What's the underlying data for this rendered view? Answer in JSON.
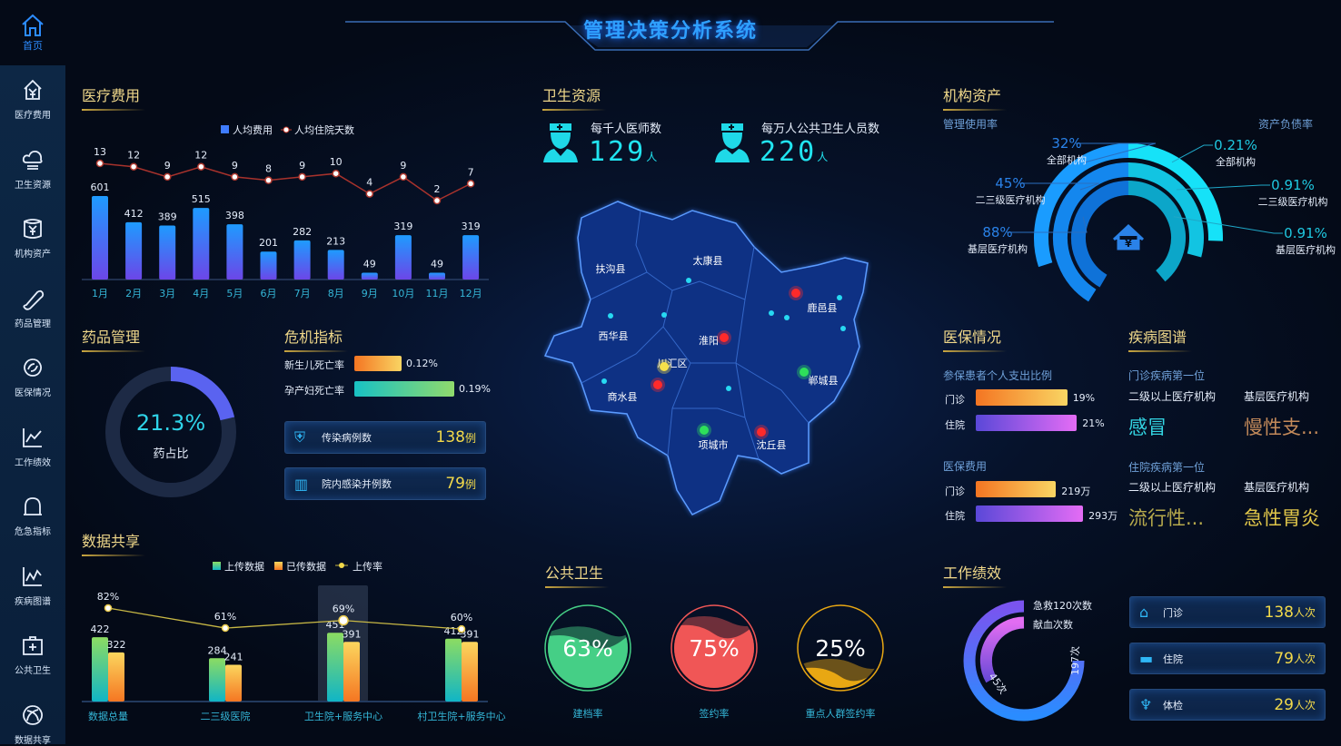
{
  "header": {
    "title": "管理决策分析系统"
  },
  "sidebar": {
    "home": "首页",
    "items": [
      {
        "label": "医疗费用",
        "icon": "house-yen-icon"
      },
      {
        "label": "卫生资源",
        "icon": "cloud-icon"
      },
      {
        "label": "机构资产",
        "icon": "coin-stack-icon"
      },
      {
        "label": "药品管理",
        "icon": "pill-icon"
      },
      {
        "label": "医保情况",
        "icon": "si-logo-icon"
      },
      {
        "label": "工作绩效",
        "icon": "line-chart-icon"
      },
      {
        "label": "危急指标",
        "icon": "bell-icon"
      },
      {
        "label": "疾病图谱",
        "icon": "trend-chart-icon"
      },
      {
        "label": "公共卫生",
        "icon": "medical-plus-icon"
      },
      {
        "label": "数据共享",
        "icon": "share-icon"
      }
    ]
  },
  "medical_cost": {
    "title": "医疗费用"
  },
  "resources": {
    "title": "卫生资源",
    "doctors": {
      "label": "每千人医师数",
      "value": "129",
      "unit": "人"
    },
    "staff": {
      "label": "每万人公共卫生人员数",
      "value": "220",
      "unit": "人"
    }
  },
  "assets": {
    "title": "机构资产",
    "left_title": "管理使用率",
    "right_title": "资产负债率",
    "left": [
      {
        "value": "32%",
        "label": "全部机构"
      },
      {
        "value": "45%",
        "label": "二三级医疗机构"
      },
      {
        "value": "88%",
        "label": "基层医疗机构"
      }
    ],
    "right": [
      {
        "value": "0.21%",
        "label": "全部机构"
      },
      {
        "value": "0.91%",
        "label": "二三级医疗机构"
      },
      {
        "value": "0.91%",
        "label": "基层医疗机构"
      }
    ],
    "colors_left": [
      "#1a9cff",
      "#1487ee",
      "#0f72d8"
    ],
    "colors_right": [
      "#16e2f8",
      "#12c4e2",
      "#0ca6c9"
    ]
  },
  "drugs": {
    "title": "药品管理",
    "value": "21.3%",
    "label": "药占比",
    "fraction": 0.213
  },
  "crisis": {
    "title": "危机指标",
    "rates": [
      {
        "label": "新生儿死亡率",
        "value": "0.12%"
      },
      {
        "label": "孕产妇死亡率",
        "value": "0.19%"
      }
    ],
    "cards": [
      {
        "label": "传染病例数",
        "value": "138",
        "unit": "例"
      },
      {
        "label": "院内感染并例数",
        "value": "79",
        "unit": "例"
      }
    ]
  },
  "map": {
    "regions": [
      "扶沟县",
      "太康县",
      "鹿邑县",
      "西华县",
      "淮阳",
      "川汇区",
      "郸城县",
      "商水县",
      "项城市",
      "沈丘县"
    ]
  },
  "insurance": {
    "title": "医保情况",
    "ratio_title": "参保患者个人支出比例",
    "ratio": [
      {
        "label": "门诊",
        "value": "19%",
        "pct": 19
      },
      {
        "label": "住院",
        "value": "21%",
        "pct": 21
      }
    ],
    "cost_title": "医保费用",
    "cost": [
      {
        "label": "门诊",
        "value": "219万",
        "num": 219
      },
      {
        "label": "住院",
        "value": "293万",
        "num": 293
      }
    ]
  },
  "disease": {
    "title": "疾病图谱",
    "outpatient_title": "门诊疾病第一位",
    "inpatient_title": "住院疾病第一位",
    "col1": "二级以上医疗机构",
    "col2": "基层医疗机构",
    "outpatient": [
      "感冒",
      "慢性支..."
    ],
    "inpatient": [
      "流行性...",
      "急性胃炎"
    ]
  },
  "sharing": {
    "title": "数据共享"
  },
  "public_health": {
    "title": "公共卫生",
    "gauges": [
      {
        "value": "63%",
        "pct": 63,
        "label": "建档率",
        "color": "#45cf86"
      },
      {
        "value": "75%",
        "pct": 75,
        "label": "签约率",
        "color": "#f05656"
      },
      {
        "value": "25%",
        "pct": 25,
        "label": "重点人群签约率",
        "color": "#e8a713"
      }
    ]
  },
  "performance": {
    "title": "工作绩效",
    "ring_labels": [
      "急救120次数",
      "献血次数"
    ],
    "ring_values": [
      "197次",
      "45次"
    ],
    "cards": [
      {
        "label": "门诊",
        "value": "138",
        "unit": "人次",
        "icon": "clinic-icon"
      },
      {
        "label": "住院",
        "value": "79",
        "unit": "人次",
        "icon": "bed-icon"
      },
      {
        "label": "体检",
        "value": "29",
        "unit": "人次",
        "icon": "checkup-icon"
      }
    ]
  },
  "chart_data": [
    {
      "type": "bar",
      "categories": [
        "1月",
        "2月",
        "3月",
        "4月",
        "5月",
        "6月",
        "7月",
        "8月",
        "9月",
        "10月",
        "11月",
        "12月"
      ],
      "series": [
        {
          "name": "人均费用",
          "type": "bar",
          "values": [
            601,
            412,
            389,
            515,
            398,
            201,
            282,
            213,
            49,
            319,
            49,
            319
          ]
        },
        {
          "name": "人均住院天数",
          "type": "line",
          "values": [
            13,
            12,
            9,
            12,
            9,
            8,
            9,
            10,
            4,
            9,
            2,
            7
          ]
        }
      ],
      "legend": "top-center",
      "grid": false
    },
    {
      "type": "bar",
      "categories": [
        "数据总量",
        "二三级医院",
        "卫生院+服务中心",
        "村卫生院+服务中心"
      ],
      "series": [
        {
          "name": "上传数据",
          "type": "bar",
          "values": [
            422,
            284,
            451,
            412
          ]
        },
        {
          "name": "已传数据",
          "type": "bar",
          "values": [
            322,
            241,
            391,
            391
          ]
        },
        {
          "name": "上传率",
          "type": "line",
          "values": [
            "82%",
            "61%",
            "69%",
            "60%"
          ]
        }
      ],
      "legend": "top-center",
      "grid": false
    }
  ]
}
